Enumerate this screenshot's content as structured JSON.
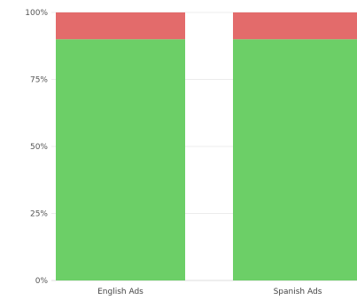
{
  "chart_data": {
    "type": "bar",
    "stacked": true,
    "normalized": true,
    "categories": [
      "English Ads",
      "Spanish Ads"
    ],
    "series": [
      {
        "values": [
          90,
          90
        ],
        "color": "#6ccf67"
      },
      {
        "values": [
          10,
          10
        ],
        "color": "#e36b6b"
      }
    ],
    "y_ticks": [
      "100%",
      "75%",
      "50%",
      "25%",
      "0%"
    ],
    "ylim": [
      0,
      100
    ],
    "grid": true,
    "legend": "none"
  }
}
